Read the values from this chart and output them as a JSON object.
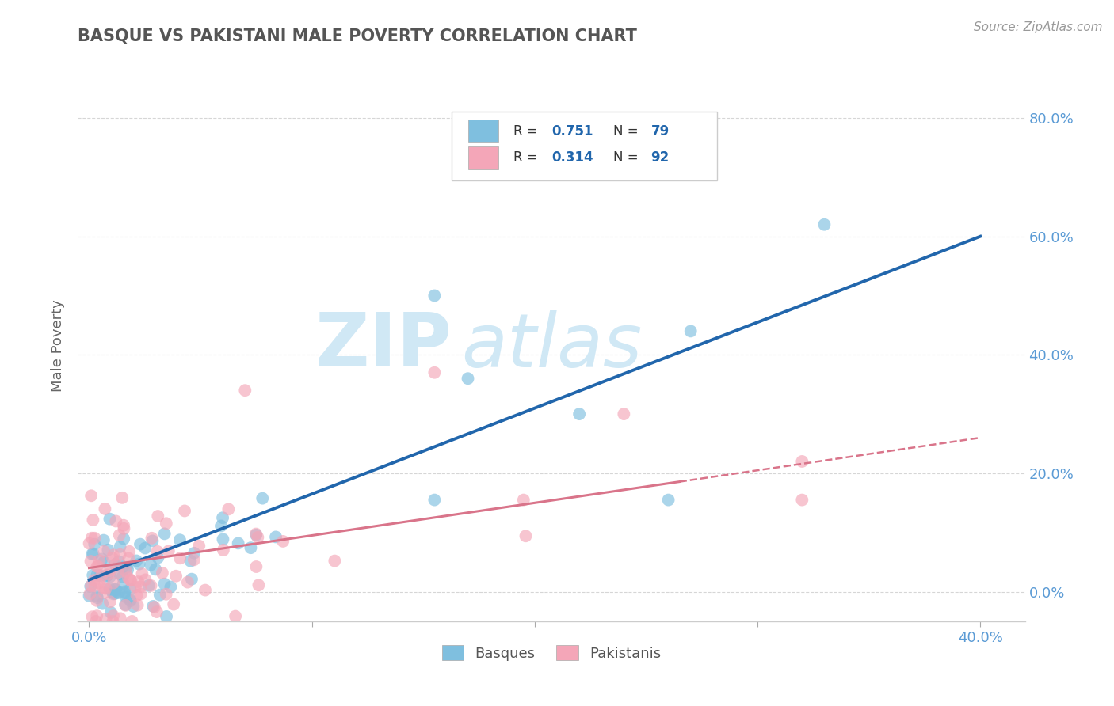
{
  "title": "BASQUE VS PAKISTANI MALE POVERTY CORRELATION CHART",
  "source": "Source: ZipAtlas.com",
  "ylabel": "Male Poverty",
  "xlim": [
    -0.005,
    0.42
  ],
  "ylim": [
    -0.05,
    0.88
  ],
  "yticks": [
    0.0,
    0.2,
    0.4,
    0.6,
    0.8
  ],
  "xticks": [
    0.0,
    0.1,
    0.2,
    0.3,
    0.4
  ],
  "blue_R": 0.751,
  "blue_N": 79,
  "pink_R": 0.314,
  "pink_N": 92,
  "blue_color": "#7fbfdf",
  "pink_color": "#f4a6b8",
  "blue_line_color": "#2166ac",
  "pink_line_color": "#d9748a",
  "watermark_color": "#d0e8f5",
  "legend_label1": "Basques",
  "legend_label2": "Pakistanis",
  "title_color": "#555555",
  "axis_color": "#5b9bd5",
  "grid_color": "#cccccc",
  "source_color": "#999999",
  "ylabel_color": "#666666"
}
